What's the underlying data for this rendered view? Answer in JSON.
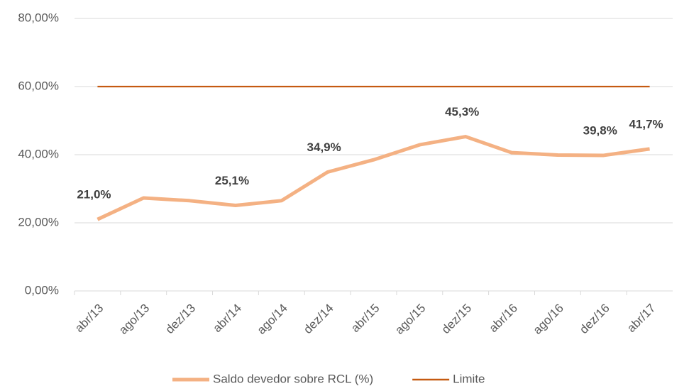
{
  "chart_data": {
    "type": "line",
    "categories": [
      "abr/13",
      "ago/13",
      "dez/13",
      "abr/14",
      "ago/14",
      "dez/14",
      "abr/15",
      "ago/15",
      "dez/15",
      "abr/16",
      "ago/16",
      "dez/16",
      "abr/17"
    ],
    "series": [
      {
        "name": "Saldo devedor sobre RCL (%)",
        "color": "#f4b183",
        "values": [
          21.0,
          27.3,
          26.5,
          25.1,
          26.5,
          34.9,
          38.5,
          42.9,
          45.3,
          40.6,
          39.9,
          39.8,
          41.7
        ],
        "value_labels": [
          "21,0%",
          null,
          null,
          "25,1%",
          null,
          "34,9%",
          null,
          null,
          "45,3%",
          null,
          null,
          "39,8%",
          "41,7%"
        ]
      },
      {
        "name": "Limite",
        "color": "#c55a11",
        "values": [
          60,
          60,
          60,
          60,
          60,
          60,
          60,
          60,
          60,
          60,
          60,
          60,
          60
        ]
      }
    ],
    "ylim": [
      0,
      80
    ],
    "yticks": [
      {
        "value": 0,
        "label": "0,00%"
      },
      {
        "value": 20,
        "label": "20,00%"
      },
      {
        "value": 40,
        "label": "40,00%"
      },
      {
        "value": 60,
        "label": "60,00%"
      },
      {
        "value": 80,
        "label": "80,00%"
      }
    ],
    "grid": true,
    "legend": "bottom"
  }
}
